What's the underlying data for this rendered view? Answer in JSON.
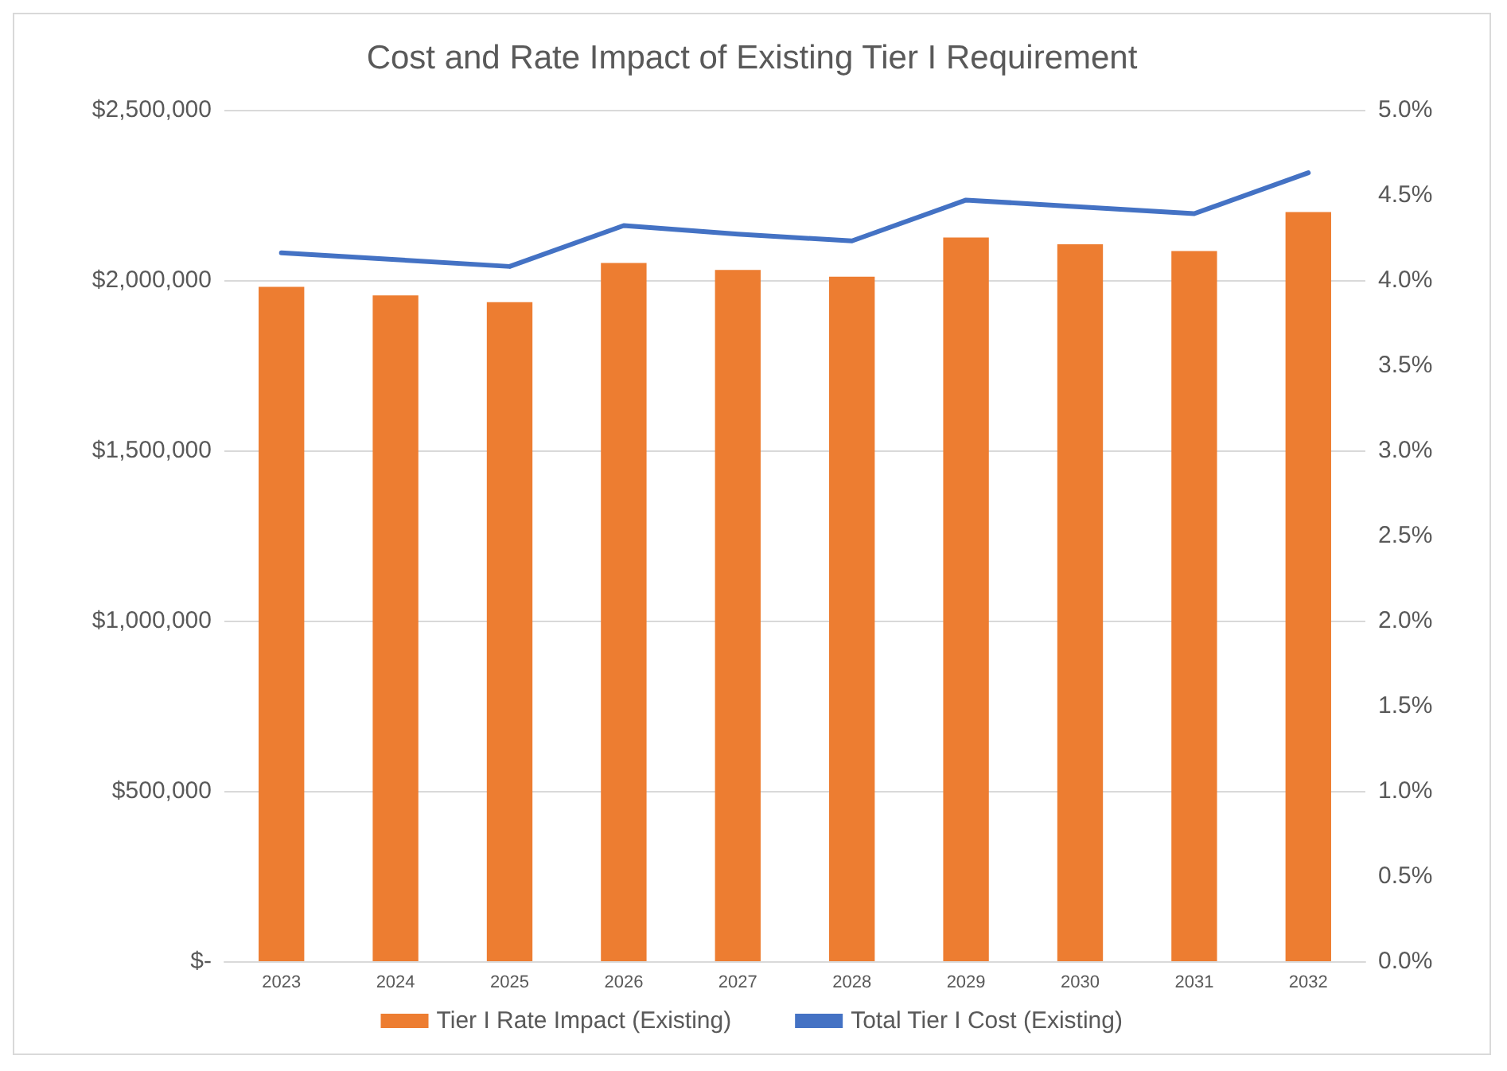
{
  "chart_data": {
    "type": "bar",
    "title": "Cost and Rate Impact of Existing Tier I Requirement",
    "categories": [
      "2023",
      "2024",
      "2025",
      "2026",
      "2027",
      "2028",
      "2029",
      "2030",
      "2031",
      "2032"
    ],
    "series": [
      {
        "name": "Tier I Rate Impact (Existing)",
        "axis": "y2",
        "color": "#ed7d31",
        "values": [
          3.96,
          3.91,
          3.87,
          4.1,
          4.06,
          4.02,
          4.25,
          4.21,
          4.17,
          4.4
        ]
      },
      {
        "name": "Total Tier I Cost (Existing)",
        "type": "line",
        "color": "#4472c4",
        "marker": "none",
        "values": [
          2080000,
          2060000,
          2040000,
          2160000,
          2135000,
          2115000,
          2235000,
          2215000,
          2195000,
          2315000
        ]
      }
    ],
    "ylim": [
      0,
      2500000
    ],
    "yticks": [
      {
        "value": 0,
        "label": "$-"
      },
      {
        "value": 500000,
        "label": "$500,000"
      },
      {
        "value": 1000000,
        "label": "$1,000,000"
      },
      {
        "value": 1500000,
        "label": "$1,500,000"
      },
      {
        "value": 2000000,
        "label": "$2,000,000"
      },
      {
        "value": 2500000,
        "label": "$2,500,000"
      }
    ],
    "y2lim": [
      0,
      5
    ],
    "y2ticks": [
      {
        "value": 0,
        "label": "0.0%"
      },
      {
        "value": 0.5,
        "label": "0.5%"
      },
      {
        "value": 1,
        "label": "1.0%"
      },
      {
        "value": 1.5,
        "label": "1.5%"
      },
      {
        "value": 2,
        "label": "2.0%"
      },
      {
        "value": 2.5,
        "label": "2.5%"
      },
      {
        "value": 3,
        "label": "3.0%"
      },
      {
        "value": 3.5,
        "label": "3.5%"
      },
      {
        "value": 4,
        "label": "4.0%"
      },
      {
        "value": 4.5,
        "label": "4.5%"
      },
      {
        "value": 5,
        "label": "5.0%"
      }
    ],
    "grid": "y",
    "legend": "bottom"
  }
}
